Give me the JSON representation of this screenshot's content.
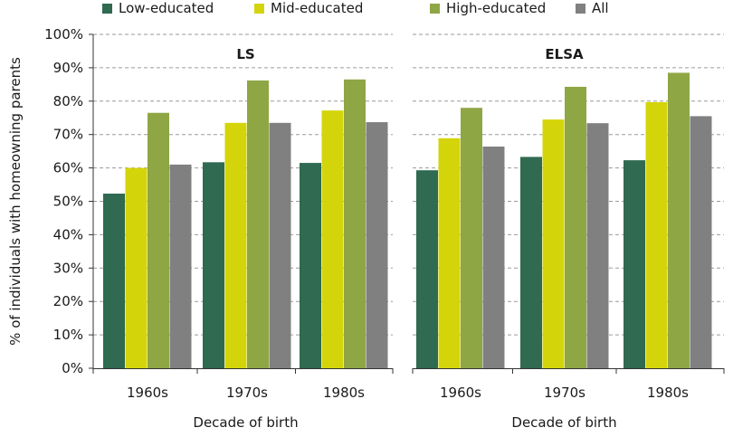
{
  "chart_data": {
    "type": "bar",
    "ylabel": "% of individuals with homeowning parents",
    "ylim": [
      0,
      100
    ],
    "yticks": [
      "0%",
      "10%",
      "20%",
      "30%",
      "40%",
      "50%",
      "60%",
      "70%",
      "80%",
      "90%",
      "100%"
    ],
    "grid": "horizontal dashed",
    "legend_position": "top",
    "series_meta": [
      {
        "name": "Low-educated",
        "color": "#2f6a51"
      },
      {
        "name": "Mid-educated",
        "color": "#d4d40a"
      },
      {
        "name": "High-educated",
        "color": "#8fa645"
      },
      {
        "name": "All",
        "color": "#808080"
      }
    ],
    "panels": [
      {
        "title": "LS",
        "xlabel": "Decade of birth",
        "categories": [
          "1960s",
          "1970s",
          "1980s"
        ],
        "series": [
          {
            "name": "Low-educated",
            "values": [
              52.3,
              61.7,
              61.5
            ]
          },
          {
            "name": "Mid-educated",
            "values": [
              60.0,
              73.5,
              77.2
            ]
          },
          {
            "name": "High-educated",
            "values": [
              76.5,
              86.2,
              86.5
            ]
          },
          {
            "name": "All",
            "values": [
              61.0,
              73.5,
              73.7
            ]
          }
        ]
      },
      {
        "title": "ELSA",
        "xlabel": "Decade of birth",
        "categories": [
          "1960s",
          "1970s",
          "1980s"
        ],
        "series": [
          {
            "name": "Low-educated",
            "values": [
              59.3,
              63.3,
              62.3
            ]
          },
          {
            "name": "Mid-educated",
            "values": [
              68.9,
              74.5,
              79.7
            ]
          },
          {
            "name": "High-educated",
            "values": [
              78.0,
              84.3,
              88.5
            ]
          },
          {
            "name": "All",
            "values": [
              66.4,
              73.4,
              75.5
            ]
          }
        ]
      }
    ]
  }
}
